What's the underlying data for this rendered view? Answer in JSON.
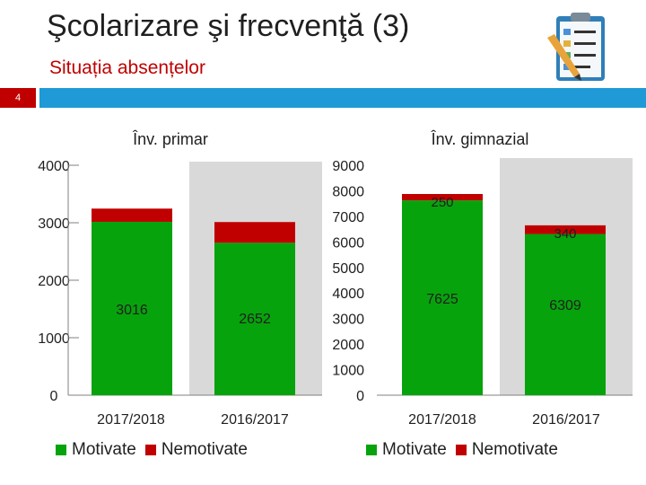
{
  "header": {
    "title": "Şcolarizare şi frecvenţă (3)",
    "subtitle": "Situația absențelor",
    "slide_number": "4"
  },
  "icons": {
    "clipboard": "clipboard-checklist-icon"
  },
  "colors": {
    "motivate": "#07a30c",
    "nemotivate": "#c00000",
    "accent": "#1f9ad6",
    "shade": "#d9d9d9"
  },
  "chart_data": [
    {
      "type": "bar",
      "stacked": true,
      "title": "Înv. primar",
      "categories": [
        "2017/2018",
        "2016/2017"
      ],
      "series": [
        {
          "name": "Motivate",
          "values": [
            3016,
            2652
          ],
          "labels": [
            "3016",
            "2652"
          ]
        },
        {
          "name": "Nemotivate",
          "values": [
            230,
            360
          ],
          "labels": [
            "",
            ""
          ]
        }
      ],
      "ylim": [
        0,
        4000
      ],
      "yticks": [
        "0",
        "1000",
        "2000",
        "3000",
        "4000"
      ],
      "grid": false,
      "legend": "bottom"
    },
    {
      "type": "bar",
      "stacked": true,
      "title": "Înv. gimnazial",
      "categories": [
        "2017/2018",
        "2016/2017"
      ],
      "series": [
        {
          "name": "Motivate",
          "values": [
            7625,
            6309
          ],
          "labels": [
            "7625",
            "6309"
          ]
        },
        {
          "name": "Nemotivate",
          "values": [
            250,
            340
          ],
          "labels": [
            "250",
            "340"
          ]
        }
      ],
      "ylim": [
        0,
        9000
      ],
      "yticks": [
        "0",
        "1000",
        "2000",
        "3000",
        "4000",
        "5000",
        "6000",
        "7000",
        "8000",
        "9000"
      ],
      "grid": false,
      "legend": "bottom"
    }
  ]
}
